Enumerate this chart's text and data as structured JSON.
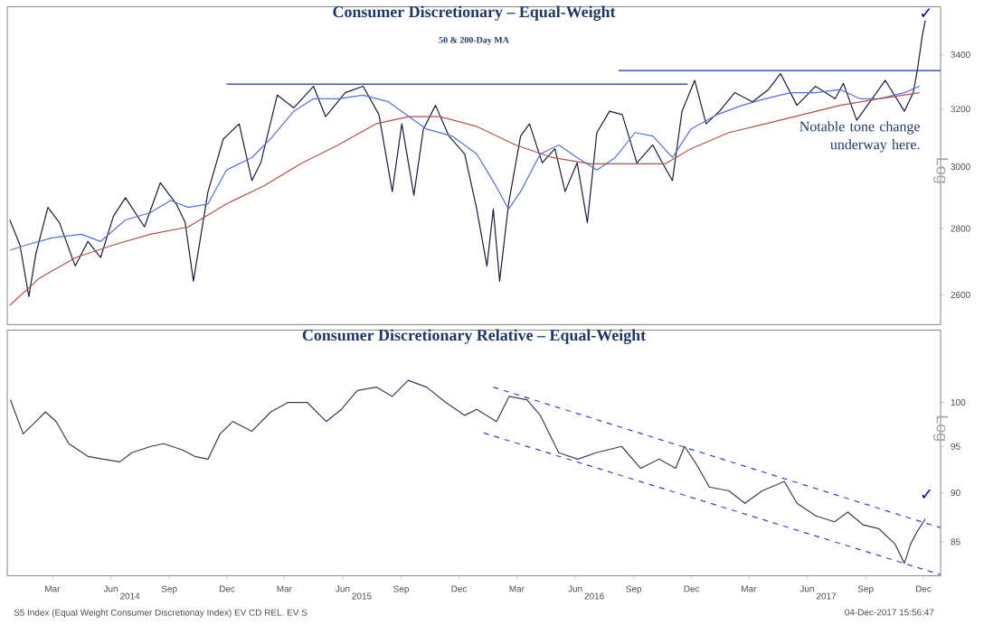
{
  "chart_data": [
    {
      "type": "line",
      "title": "Consumer Discretionary – Equal-Weight",
      "subtitle": "50 & 200-Day MA",
      "ylabel": "Log",
      "xlim": [
        "2013-12-20",
        "2017-12-28"
      ],
      "ylim": [
        2515,
        3587
      ],
      "log": true,
      "yticks": [
        2600,
        2800,
        3000,
        3200,
        3400
      ],
      "tick_labels": "y",
      "series": [
        {
          "color": "#1b1b3a",
          "x": [
            "2013-12-24",
            "2014-01-09",
            "2014-01-23",
            "2014-02-03",
            "2014-02-22",
            "2014-03-12",
            "2014-04-06",
            "2014-04-26",
            "2014-05-16",
            "2014-06-05",
            "2014-06-24",
            "2014-07-24",
            "2014-08-18",
            "2014-09-12",
            "2014-09-26",
            "2014-10-09",
            "2014-11-01",
            "2014-11-25",
            "2014-12-20",
            "2015-01-09",
            "2015-01-23",
            "2015-02-18",
            "2015-03-16",
            "2015-04-16",
            "2015-05-05",
            "2015-06-05",
            "2015-07-03",
            "2015-07-28",
            "2015-08-18",
            "2015-09-02",
            "2015-09-21",
            "2015-10-06",
            "2015-10-25",
            "2015-11-15",
            "2015-12-10",
            "2015-12-29",
            "2016-01-14",
            "2016-01-24",
            "2016-02-03",
            "2016-02-17",
            "2016-03-07",
            "2016-03-21",
            "2016-04-10",
            "2016-04-30",
            "2016-05-16",
            "2016-06-04",
            "2016-06-20",
            "2016-07-05",
            "2016-07-25",
            "2016-08-14",
            "2016-09-06",
            "2016-10-01",
            "2016-10-16",
            "2016-11-01",
            "2016-11-16",
            "2016-12-06",
            "2016-12-24",
            "2017-01-14",
            "2017-02-07",
            "2017-03-07",
            "2017-04-01",
            "2017-04-20",
            "2017-05-16",
            "2017-06-14",
            "2017-07-15",
            "2017-07-28",
            "2017-08-18",
            "2017-09-08",
            "2017-10-02",
            "2017-11-01",
            "2017-11-15",
            "2017-11-22",
            "2017-11-29",
            "2017-12-04"
          ],
          "values": [
            2827,
            2749,
            2595,
            2722,
            2867,
            2819,
            2685,
            2760,
            2711,
            2838,
            2898,
            2805,
            2947,
            2878,
            2819,
            2640,
            2918,
            3094,
            3147,
            2954,
            3013,
            3250,
            3204,
            3282,
            3173,
            3259,
            3282,
            3180,
            2918,
            3147,
            2906,
            3129,
            3213,
            3105,
            3043,
            2861,
            2685,
            2861,
            2640,
            2878,
            3105,
            3147,
            3013,
            3061,
            2918,
            3013,
            2819,
            3117,
            3192,
            3180,
            3013,
            3074,
            3013,
            2954,
            3192,
            3304,
            3147,
            3192,
            3259,
            3226,
            3270,
            3329,
            3213,
            3282,
            3237,
            3293,
            3160,
            3226,
            3304,
            3192,
            3259,
            3350,
            3470,
            3533
          ]
        },
        {
          "color": "#5a6ed8",
          "x": [
            "2013-12-24",
            "2014-01-19",
            "2014-02-28",
            "2014-04-16",
            "2014-05-16",
            "2014-06-24",
            "2014-08-02",
            "2014-09-03",
            "2014-10-01",
            "2014-11-01",
            "2014-11-30",
            "2015-01-09",
            "2015-02-07",
            "2015-03-16",
            "2015-04-16",
            "2015-05-25",
            "2015-07-03",
            "2015-08-12",
            "2015-09-13",
            "2015-10-11",
            "2015-11-20",
            "2015-12-29",
            "2016-01-28",
            "2016-02-17",
            "2016-03-07",
            "2016-04-07",
            "2016-05-06",
            "2016-06-04",
            "2016-07-05",
            "2016-08-03",
            "2016-09-03",
            "2016-10-01",
            "2016-11-01",
            "2016-11-30",
            "2017-01-10",
            "2017-02-19",
            "2017-03-27",
            "2017-05-06",
            "2017-06-14",
            "2017-07-23",
            "2017-08-23",
            "2017-09-22",
            "2017-11-01",
            "2017-11-25"
          ],
          "values": [
            2733,
            2749,
            2771,
            2782,
            2760,
            2827,
            2850,
            2889,
            2867,
            2878,
            2989,
            3031,
            3094,
            3192,
            3237,
            3237,
            3250,
            3226,
            3173,
            3129,
            3105,
            3043,
            2937,
            2861,
            2918,
            3043,
            3074,
            3031,
            2989,
            3031,
            3117,
            3105,
            3031,
            3129,
            3180,
            3213,
            3237,
            3259,
            3259,
            3270,
            3237,
            3237,
            3259,
            3282
          ]
        },
        {
          "color": "#b0504a",
          "x": [
            "2013-12-24",
            "2014-02-08",
            "2014-04-07",
            "2014-06-05",
            "2014-08-02",
            "2014-10-01",
            "2014-11-30",
            "2015-01-28",
            "2015-03-27",
            "2015-05-25",
            "2015-07-23",
            "2015-09-13",
            "2015-11-01",
            "2015-12-29",
            "2016-02-28",
            "2016-04-26",
            "2016-06-24",
            "2016-08-23",
            "2016-10-21",
            "2016-11-30",
            "2017-01-29",
            "2017-03-27",
            "2017-05-25",
            "2017-07-23",
            "2017-09-22",
            "2017-11-25"
          ],
          "values": [
            2570,
            2648,
            2711,
            2749,
            2782,
            2805,
            2878,
            2937,
            3010,
            3074,
            3147,
            3173,
            3173,
            3138,
            3074,
            3031,
            3010,
            3010,
            3010,
            3061,
            3117,
            3147,
            3180,
            3213,
            3237,
            3259
          ]
        },
        {
          "color": "#1f2fa0",
          "x": [
            "2014-11-30",
            "2016-11-25"
          ],
          "values": [
            3290,
            3290
          ]
        },
        {
          "color": "#1f2fa0",
          "x": [
            "2016-08-08",
            "2017-12-28"
          ],
          "values": [
            3340,
            3340
          ]
        }
      ],
      "annotations": [
        "Notable tone change underway here.",
        {
          "text": "✓",
          "x": "2017-12-05",
          "y": 3560
        }
      ]
    },
    {
      "type": "line",
      "title": "Consumer Discretionary Relative – Equal-Weight",
      "ylabel": "Log",
      "xlim": [
        "2013-12-20",
        "2017-12-28"
      ],
      "xticks": [
        {
          "value": "2014-03-01",
          "label": "Mar"
        },
        {
          "value": "2014-06-01",
          "label": "Jun"
        },
        {
          "value": "2014-09-01",
          "label": "Sep"
        },
        {
          "value": "2014-12-01",
          "label": "Dec"
        },
        {
          "value": "2015-03-01",
          "label": "Mar"
        },
        {
          "value": "2015-06-01",
          "label": "Jun"
        },
        {
          "value": "2015-09-01",
          "label": "Sep"
        },
        {
          "value": "2015-12-01",
          "label": "Dec"
        },
        {
          "value": "2016-03-01",
          "label": "Mar"
        },
        {
          "value": "2016-06-01",
          "label": "Jun"
        },
        {
          "value": "2016-09-01",
          "label": "Sep"
        },
        {
          "value": "2016-12-01",
          "label": "Dec"
        },
        {
          "value": "2017-03-01",
          "label": "Mar"
        },
        {
          "value": "2017-06-01",
          "label": "Jun"
        },
        {
          "value": "2017-09-01",
          "label": "Sep"
        },
        {
          "value": "2017-12-01",
          "label": "Dec"
        }
      ],
      "x2lim": [
        "2013-12-20",
        "2017-12-28"
      ],
      "x2ticks": [
        {
          "value": "2014-07-01",
          "label": "2014"
        },
        {
          "value": "2015-07-01",
          "label": "2015"
        },
        {
          "value": "2016-07-01",
          "label": "2016"
        },
        {
          "value": "2017-07-01",
          "label": "2017"
        }
      ],
      "ylim": [
        81.7,
        108.8
      ],
      "log": true,
      "yticks": [
        85,
        90,
        95,
        100
      ],
      "series": [
        {
          "color": "#3a3a5a",
          "x": [
            "2013-12-25",
            "2014-01-14",
            "2014-02-03",
            "2014-02-18",
            "2014-03-07",
            "2014-03-27",
            "2014-04-26",
            "2014-05-20",
            "2014-06-15",
            "2014-07-04",
            "2014-08-03",
            "2014-08-23",
            "2014-09-22",
            "2014-10-11",
            "2014-11-01",
            "2014-11-20",
            "2014-12-10",
            "2015-01-09",
            "2015-02-08",
            "2015-03-07",
            "2015-04-06",
            "2015-05-06",
            "2015-05-30",
            "2015-06-24",
            "2015-07-24",
            "2015-08-18",
            "2015-09-12",
            "2015-10-11",
            "2015-11-10",
            "2015-12-10",
            "2015-12-29",
            "2016-01-29",
            "2016-02-18",
            "2016-03-17",
            "2016-04-07",
            "2016-05-06",
            "2016-06-05",
            "2016-07-04",
            "2016-08-13",
            "2016-09-12",
            "2016-10-11",
            "2016-11-06",
            "2016-11-20",
            "2016-12-10",
            "2016-12-29",
            "2017-01-29",
            "2017-02-23",
            "2017-03-22",
            "2017-04-26",
            "2017-05-16",
            "2017-06-15",
            "2017-07-14",
            "2017-08-04",
            "2017-08-28",
            "2017-09-22",
            "2017-10-17",
            "2017-11-01",
            "2017-11-11",
            "2017-11-21",
            "2017-12-04"
          ],
          "values": [
            100.3,
            96.4,
            97.8,
            98.9,
            97.8,
            95.3,
            93.9,
            93.6,
            93.3,
            94.3,
            95.0,
            95.3,
            94.6,
            93.9,
            93.6,
            96.4,
            97.8,
            96.7,
            98.9,
            100.0,
            100.0,
            97.8,
            99.2,
            101.4,
            101.8,
            100.7,
            102.6,
            101.8,
            100.0,
            98.5,
            99.2,
            97.8,
            100.7,
            100.3,
            98.5,
            94.3,
            93.6,
            94.3,
            95.0,
            92.6,
            93.6,
            92.6,
            95.0,
            92.9,
            90.6,
            90.2,
            88.9,
            90.2,
            91.2,
            88.9,
            87.6,
            87.0,
            88.0,
            86.7,
            86.3,
            84.8,
            82.9,
            84.8,
            86.0,
            87.3
          ]
        },
        {
          "color": "#3344cc",
          "line_style": "dashed",
          "x": [
            "2016-01-24",
            "2017-12-28"
          ],
          "values": [
            101.8,
            86.4
          ]
        },
        {
          "color": "#3344cc",
          "line_style": "dashed",
          "x": [
            "2016-01-09",
            "2017-12-28"
          ],
          "values": [
            96.5,
            81.8
          ]
        }
      ],
      "annotations": [
        "✓",
        "S5 Index (Equal Weight Consumer Discretionay Index) EV CD REL. EV S",
        "04-Dec-2017 15:56:47"
      ]
    }
  ]
}
